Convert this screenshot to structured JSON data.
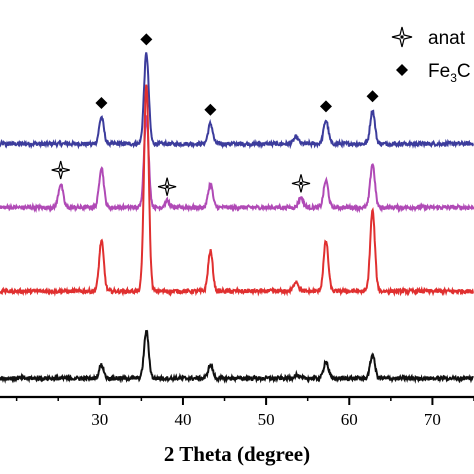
{
  "chart_data": {
    "type": "line",
    "xlabel": "2 Theta (degree)",
    "xlim": [
      18,
      75
    ],
    "xticks": [
      30,
      40,
      50,
      60,
      70
    ],
    "legend": [
      {
        "marker": "star",
        "label": "anat"
      },
      {
        "marker": "diamond",
        "label": "Fe",
        "subscript": "3",
        "suffix": "C"
      }
    ],
    "series": [
      {
        "color": "#3c3c9c",
        "baseline_level": 0.72,
        "peaks": [
          [
            30.2,
            0.08
          ],
          [
            35.6,
            0.27
          ],
          [
            43.3,
            0.06
          ],
          [
            53.6,
            0.02
          ],
          [
            57.2,
            0.07
          ],
          [
            62.8,
            0.1
          ]
        ]
      },
      {
        "color": "#b04ab6",
        "baseline_level": 0.53,
        "peaks": [
          [
            25.3,
            0.07
          ],
          [
            30.2,
            0.12
          ],
          [
            35.6,
            0.27
          ],
          [
            38.1,
            0.02
          ],
          [
            43.3,
            0.07
          ],
          [
            54.2,
            0.03
          ],
          [
            57.2,
            0.08
          ],
          [
            62.8,
            0.13
          ]
        ]
      },
      {
        "color": "#e03030",
        "baseline_level": 0.28,
        "peaks": [
          [
            30.2,
            0.15
          ],
          [
            35.6,
            0.62
          ],
          [
            43.3,
            0.12
          ],
          [
            53.6,
            0.03
          ],
          [
            57.2,
            0.15
          ],
          [
            62.8,
            0.24
          ]
        ]
      },
      {
        "color": "#111111",
        "baseline_level": 0.02,
        "peaks": [
          [
            30.2,
            0.04
          ],
          [
            35.6,
            0.14
          ],
          [
            43.3,
            0.04
          ],
          [
            53.6,
            0.01
          ],
          [
            57.2,
            0.05
          ],
          [
            62.8,
            0.07
          ]
        ]
      }
    ],
    "annotations": [
      {
        "marker": "diamond",
        "x": [
          30.2,
          35.6,
          43.3,
          57.2,
          62.8
        ],
        "series": 0
      },
      {
        "marker": "star",
        "x": [
          25.3,
          38.1,
          54.2
        ],
        "series": 1
      }
    ]
  }
}
